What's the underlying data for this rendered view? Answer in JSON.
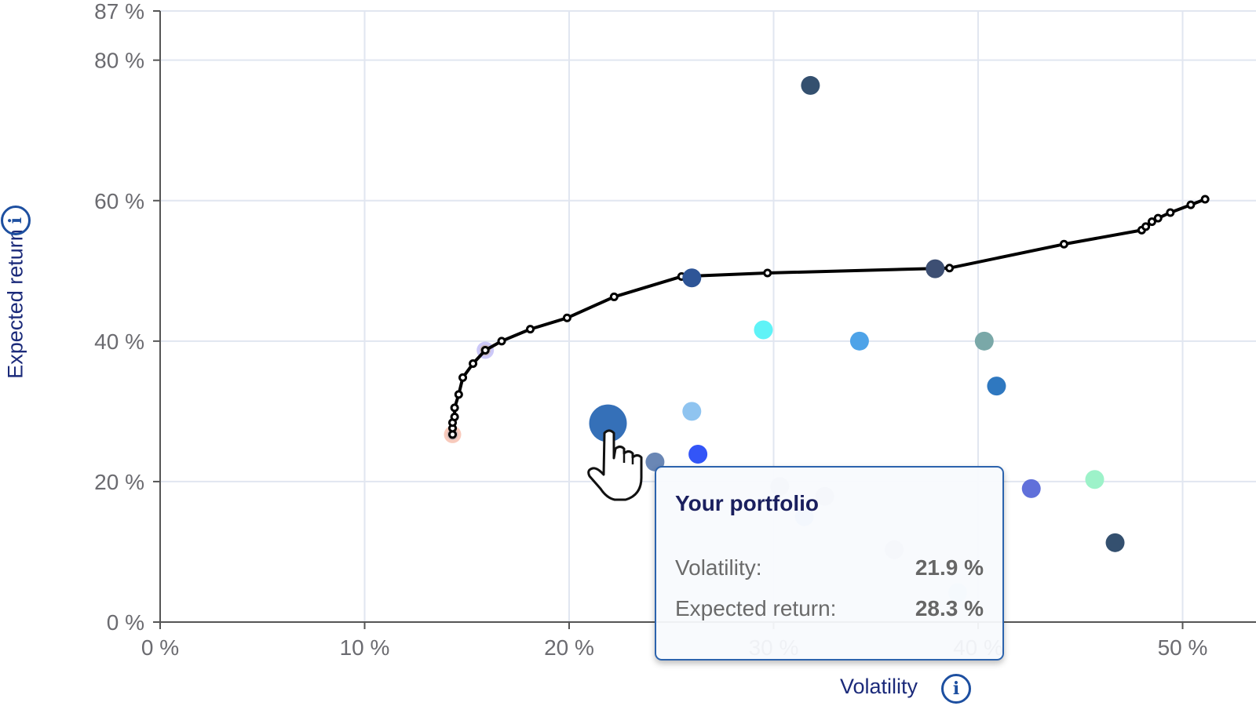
{
  "chart_data": {
    "type": "scatter",
    "xlabel": "Volatility",
    "ylabel": "Expected return",
    "xlim": [
      0,
      52
    ],
    "ylim": [
      0,
      87
    ],
    "x_ticks": [
      "0 %",
      "10 %",
      "20 %",
      "30 %",
      "40 %",
      "50 %"
    ],
    "x_tick_values": [
      0,
      10,
      20,
      30,
      40,
      50
    ],
    "y_ticks": [
      "0 %",
      "20 %",
      "40 %",
      "60 %",
      "80 %",
      "87 %"
    ],
    "y_tick_values": [
      0,
      20,
      40,
      60,
      80,
      87
    ],
    "grid": true,
    "frontier": {
      "color": "#000000",
      "points": [
        [
          14.3,
          26.7
        ],
        [
          14.3,
          27.6
        ],
        [
          14.3,
          28.4
        ],
        [
          14.4,
          29.2
        ],
        [
          14.4,
          30.5
        ],
        [
          14.6,
          32.4
        ],
        [
          14.8,
          34.8
        ],
        [
          15.3,
          36.8
        ],
        [
          15.9,
          38.7
        ],
        [
          16.7,
          40.0
        ],
        [
          18.1,
          41.7
        ],
        [
          19.9,
          43.3
        ],
        [
          22.2,
          46.3
        ],
        [
          25.5,
          49.2
        ],
        [
          29.7,
          49.7
        ],
        [
          38.6,
          50.4
        ],
        [
          44.2,
          53.8
        ],
        [
          48.0,
          55.8
        ],
        [
          48.2,
          56.3
        ],
        [
          48.5,
          57.0
        ],
        [
          48.8,
          57.5
        ],
        [
          49.4,
          58.3
        ],
        [
          50.4,
          59.4
        ],
        [
          51.1,
          60.2
        ]
      ]
    },
    "highlighted_frontier_points": [
      {
        "x": 14.3,
        "y": 26.7,
        "color": "#f08a6a"
      },
      {
        "x": 15.9,
        "y": 38.7,
        "color": "#8f86f0"
      }
    ],
    "assets": [
      {
        "x": 31.8,
        "y": 76.4,
        "color": "#34506f"
      },
      {
        "x": 26.0,
        "y": 49.0,
        "color": "#2e5597"
      },
      {
        "x": 37.9,
        "y": 50.3,
        "color": "#3d4f73"
      },
      {
        "x": 29.5,
        "y": 41.6,
        "color": "#5ff3f7"
      },
      {
        "x": 34.2,
        "y": 40.0,
        "color": "#4ea3e8"
      },
      {
        "x": 40.3,
        "y": 40.0,
        "color": "#7aa8a8"
      },
      {
        "x": 40.9,
        "y": 33.6,
        "color": "#2f78c0"
      },
      {
        "x": 26.0,
        "y": 30.0,
        "color": "#8fc4f0"
      },
      {
        "x": 24.2,
        "y": 22.8,
        "color": "#6a87b5"
      },
      {
        "x": 26.3,
        "y": 23.9,
        "color": "#3355f7"
      },
      {
        "x": 42.6,
        "y": 19.0,
        "color": "#6070da"
      },
      {
        "x": 45.7,
        "y": 20.3,
        "color": "#9df2c9"
      },
      {
        "x": 46.7,
        "y": 11.3,
        "color": "#34506f"
      },
      {
        "x": 30.3,
        "y": 19.3,
        "color": "#c8ccd4"
      },
      {
        "x": 32.5,
        "y": 17.9,
        "color": "#c8ccd4"
      },
      {
        "x": 31.5,
        "y": 15.0,
        "color": "#a9cdf2"
      },
      {
        "x": 35.9,
        "y": 10.3,
        "color": "#c8ccd4"
      },
      {
        "x": 26.9,
        "y": 7.4,
        "color": "#dfe3ea"
      },
      {
        "x": 39.0,
        "y": 4.2,
        "color": "#cfe0f5"
      }
    ],
    "portfolio": {
      "x": 21.9,
      "y": 28.3,
      "color": "#3570b8"
    }
  },
  "tooltip": {
    "title": "Your portfolio",
    "volatility_label": "Volatility:",
    "volatility_value": "21.9 %",
    "return_label": "Expected return:",
    "return_value": "28.3 %"
  },
  "icons": {
    "axis_info": "info-circle-icon",
    "cursor": "hand-pointer-icon"
  }
}
